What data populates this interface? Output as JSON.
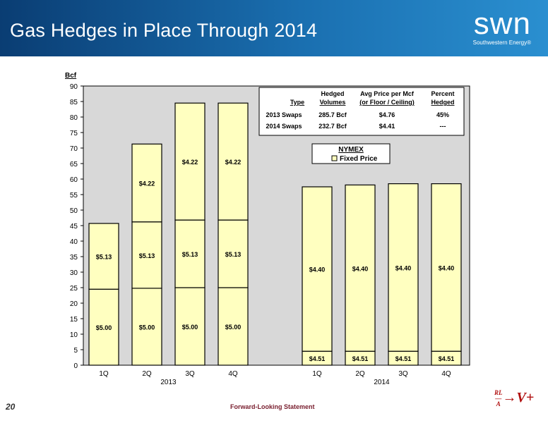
{
  "header": {
    "title": "Gas Hedges in Place Through 2014",
    "logo_word": "swn",
    "logo_sub": "Southwestern Energy®"
  },
  "footer": {
    "page_number": "20",
    "statement": "Forward-Looking Statement",
    "badge_top": "RL",
    "badge_bottom": "A",
    "badge_main": "V+"
  },
  "chart_data": {
    "type": "bar",
    "stacked": true,
    "ylabel": "Bcf",
    "ylim": [
      0,
      90
    ],
    "yticks": [
      0,
      5,
      10,
      15,
      20,
      25,
      30,
      35,
      40,
      45,
      50,
      55,
      60,
      65,
      70,
      75,
      80,
      85,
      90
    ],
    "groups": [
      {
        "year": "2013",
        "bars": [
          {
            "category": "1Q",
            "segments": [
              {
                "value": 24.5,
                "label": "$5.00"
              },
              {
                "value": 21.2,
                "label": "$5.13"
              }
            ]
          },
          {
            "category": "2Q",
            "segments": [
              {
                "value": 24.8,
                "label": "$5.00"
              },
              {
                "value": 21.4,
                "label": "$5.13"
              },
              {
                "value": 25.1,
                "label": "$4.22"
              }
            ]
          },
          {
            "category": "3Q",
            "segments": [
              {
                "value": 25.0,
                "label": "$5.00"
              },
              {
                "value": 21.8,
                "label": "$5.13"
              },
              {
                "value": 37.7,
                "label": "$4.22"
              }
            ]
          },
          {
            "category": "4Q",
            "segments": [
              {
                "value": 25.0,
                "label": "$5.00"
              },
              {
                "value": 21.8,
                "label": "$5.13"
              },
              {
                "value": 37.7,
                "label": "$4.22"
              }
            ]
          }
        ]
      },
      {
        "year": "2014",
        "bars": [
          {
            "category": "1Q",
            "segments": [
              {
                "value": 4.5,
                "label": "$4.51"
              },
              {
                "value": 53.0,
                "label": "$4.40"
              }
            ]
          },
          {
            "category": "2Q",
            "segments": [
              {
                "value": 4.5,
                "label": "$4.51"
              },
              {
                "value": 53.6,
                "label": "$4.40"
              }
            ]
          },
          {
            "category": "3Q",
            "segments": [
              {
                "value": 4.5,
                "label": "$4.51"
              },
              {
                "value": 54.0,
                "label": "$4.40"
              }
            ]
          },
          {
            "category": "4Q",
            "segments": [
              {
                "value": 4.5,
                "label": "$4.51"
              },
              {
                "value": 54.0,
                "label": "$4.40"
              }
            ]
          }
        ]
      }
    ],
    "legend": {
      "title": "NYMEX",
      "entries": [
        "Fixed Price"
      ],
      "placement": "upper-right"
    },
    "table": {
      "headers": [
        [
          "",
          "Type"
        ],
        [
          "Hedged",
          "Volumes"
        ],
        [
          "Avg Price per Mcf",
          "(or Floor / Ceiling)"
        ],
        [
          "Percent",
          "Hedged"
        ]
      ],
      "rows": [
        [
          "2013 Swaps",
          "285.7 Bcf",
          "$4.76",
          "45%"
        ],
        [
          "2014 Swaps",
          "232.7 Bcf",
          "$4.41",
          "---"
        ]
      ]
    },
    "colors": {
      "bar_fill": "#ffffc0",
      "plot_bg": "#d8d8d8",
      "outline": "#000000"
    }
  }
}
